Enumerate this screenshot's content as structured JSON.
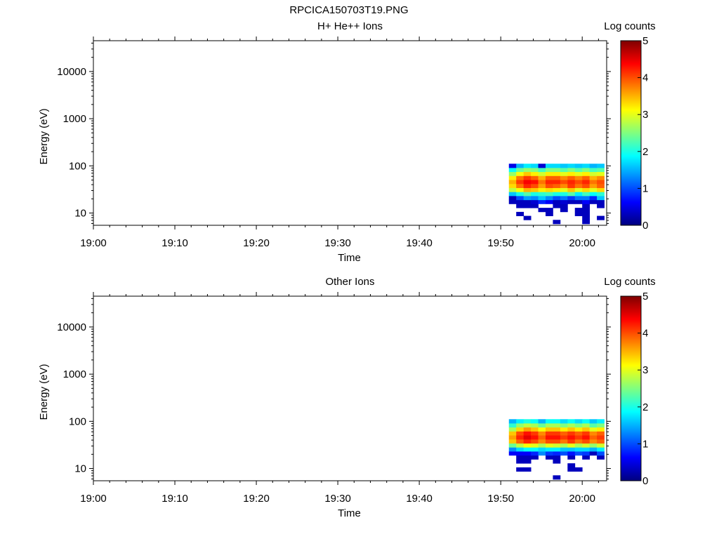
{
  "figure_title": "RPCICA150703T19.PNG",
  "chart_data": [
    {
      "type": "heatmap",
      "title": "H+ He++ Ions",
      "xlabel": "Time",
      "ylabel": "Energy (eV)",
      "x_ticks": [
        "19:00",
        "19:10",
        "19:20",
        "19:30",
        "19:40",
        "19:50",
        "20:00"
      ],
      "xlim_minutes": [
        0,
        63
      ],
      "y_scale": "log",
      "ylim": [
        5.5,
        45000
      ],
      "y_ticks": [
        10,
        100,
        1000,
        10000
      ],
      "colorbar": {
        "label": "Log counts",
        "range": [
          0,
          5
        ],
        "ticks": [
          0,
          1,
          2,
          3,
          4,
          5
        ],
        "colormap": "jet"
      },
      "time_columns_minutes": [
        51.0,
        51.9,
        52.8,
        53.7,
        54.6,
        55.5,
        56.4,
        57.3,
        58.2,
        59.1,
        60.0,
        60.9,
        61.8
      ],
      "energy_bins_eV": [
        6.5,
        7.9,
        9.6,
        11.7,
        14.2,
        17.3,
        21.0,
        25.6,
        31.1,
        37.8,
        46.0,
        56.0,
        68.1,
        82.8,
        100.7
      ],
      "log_counts": [
        [
          null,
          null,
          null,
          null,
          null,
          null,
          0.3,
          null,
          null,
          null,
          0.3,
          null,
          null
        ],
        [
          null,
          null,
          0.3,
          null,
          null,
          null,
          null,
          null,
          null,
          null,
          0.3,
          null,
          0.3
        ],
        [
          null,
          0.3,
          null,
          null,
          null,
          0.3,
          null,
          null,
          null,
          0.3,
          0.3,
          null,
          null
        ],
        [
          null,
          null,
          null,
          null,
          0.3,
          0.3,
          null,
          0.3,
          null,
          0.3,
          0.3,
          null,
          null
        ],
        [
          null,
          0.3,
          0.3,
          0.3,
          null,
          null,
          0.3,
          0.3,
          null,
          null,
          0.3,
          null,
          0.3
        ],
        [
          0.3,
          0.3,
          0.3,
          0.4,
          0.8,
          0.6,
          0.3,
          0.4,
          0.3,
          0.3,
          0.6,
          0.3,
          0.3
        ],
        [
          0.3,
          1.0,
          1.4,
          1.3,
          1.6,
          1.3,
          1.0,
          1.2,
          0.9,
          1.2,
          1.2,
          0.8,
          1.6
        ],
        [
          1.6,
          2.0,
          2.3,
          2.0,
          2.1,
          2.2,
          2.0,
          2.0,
          2.3,
          1.8,
          2.2,
          1.9,
          2.1
        ],
        [
          2.8,
          3.1,
          3.5,
          3.4,
          3.2,
          3.3,
          3.2,
          3.0,
          3.4,
          3.0,
          3.3,
          3.0,
          3.3
        ],
        [
          3.3,
          3.8,
          4.2,
          4.0,
          3.6,
          4.0,
          3.9,
          3.7,
          4.1,
          3.8,
          4.0,
          3.6,
          3.9
        ],
        [
          3.5,
          4.1,
          4.4,
          4.3,
          3.8,
          4.2,
          4.2,
          4.0,
          4.2,
          4.0,
          4.2,
          3.8,
          4.0
        ],
        [
          3.2,
          3.8,
          4.1,
          3.9,
          3.5,
          3.9,
          3.9,
          3.7,
          3.9,
          3.7,
          3.9,
          3.5,
          3.7
        ],
        [
          2.6,
          3.1,
          3.4,
          3.2,
          2.9,
          3.2,
          3.2,
          3.0,
          3.2,
          3.0,
          3.2,
          2.9,
          3.0
        ],
        [
          1.9,
          2.4,
          2.6,
          2.5,
          2.2,
          2.5,
          2.5,
          2.3,
          2.5,
          2.3,
          2.5,
          2.2,
          2.3
        ],
        [
          0.5,
          1.5,
          1.8,
          1.7,
          0.4,
          1.7,
          1.7,
          1.6,
          1.7,
          1.6,
          1.7,
          1.5,
          1.6
        ]
      ]
    },
    {
      "type": "heatmap",
      "title": "Other Ions",
      "xlabel": "Time",
      "ylabel": "Energy (eV)",
      "x_ticks": [
        "19:00",
        "19:10",
        "19:20",
        "19:30",
        "19:40",
        "19:50",
        "20:00"
      ],
      "xlim_minutes": [
        0,
        63
      ],
      "y_scale": "log",
      "ylim": [
        5.5,
        45000
      ],
      "y_ticks": [
        10,
        100,
        1000,
        10000
      ],
      "colorbar": {
        "label": "Log counts",
        "range": [
          0,
          5
        ],
        "ticks": [
          0,
          1,
          2,
          3,
          4,
          5
        ],
        "colormap": "jet"
      },
      "time_columns_minutes": [
        51.0,
        51.9,
        52.8,
        53.7,
        54.6,
        55.5,
        56.4,
        57.3,
        58.2,
        59.1,
        60.0,
        60.9,
        61.8
      ],
      "energy_bins_eV": [
        6.5,
        7.9,
        9.6,
        11.7,
        14.2,
        17.3,
        21.0,
        25.6,
        31.1,
        37.8,
        46.0,
        56.0,
        68.1,
        82.8,
        100.7
      ],
      "log_counts": [
        [
          null,
          null,
          null,
          null,
          null,
          null,
          0.3,
          null,
          null,
          null,
          null,
          null,
          null
        ],
        [
          null,
          null,
          null,
          null,
          null,
          null,
          null,
          null,
          null,
          null,
          null,
          null,
          null
        ],
        [
          null,
          0.3,
          0.3,
          null,
          null,
          null,
          null,
          null,
          0.3,
          0.3,
          null,
          null,
          null
        ],
        [
          null,
          null,
          null,
          null,
          null,
          null,
          null,
          null,
          0.3,
          null,
          null,
          null,
          null
        ],
        [
          null,
          0.3,
          0.3,
          null,
          null,
          null,
          0.3,
          null,
          null,
          null,
          null,
          null,
          null
        ],
        [
          null,
          0.3,
          0.3,
          0.3,
          null,
          0.3,
          0.3,
          null,
          0.3,
          null,
          0.3,
          null,
          0.3
        ],
        [
          0.6,
          0.6,
          0.6,
          0.8,
          1.3,
          0.9,
          0.8,
          1.0,
          0.7,
          1.0,
          0.9,
          0.3,
          1.0
        ],
        [
          1.3,
          1.7,
          1.9,
          1.9,
          1.7,
          1.8,
          1.8,
          1.6,
          1.6,
          1.7,
          1.7,
          1.5,
          1.8
        ],
        [
          2.4,
          2.8,
          3.1,
          3.0,
          2.7,
          3.0,
          2.9,
          2.7,
          3.0,
          2.7,
          2.9,
          2.6,
          2.9
        ],
        [
          3.4,
          3.9,
          4.2,
          4.0,
          3.7,
          4.0,
          4.0,
          3.8,
          4.1,
          3.8,
          4.0,
          3.7,
          3.9
        ],
        [
          3.6,
          4.2,
          4.5,
          4.3,
          3.9,
          4.3,
          4.3,
          4.1,
          4.3,
          4.1,
          4.3,
          3.9,
          4.1
        ],
        [
          3.4,
          4.0,
          4.3,
          4.1,
          3.7,
          4.1,
          4.1,
          3.9,
          4.1,
          3.9,
          4.1,
          3.7,
          3.9
        ],
        [
          2.7,
          3.3,
          3.6,
          3.4,
          3.1,
          3.4,
          3.4,
          3.2,
          3.4,
          3.2,
          3.4,
          3.0,
          3.2
        ],
        [
          2.1,
          2.6,
          2.8,
          2.7,
          2.4,
          2.7,
          2.7,
          2.5,
          2.7,
          2.5,
          2.7,
          2.3,
          2.5
        ],
        [
          1.5,
          1.8,
          2.0,
          1.9,
          1.5,
          1.9,
          1.9,
          1.7,
          1.9,
          1.7,
          1.9,
          1.6,
          1.8
        ]
      ]
    }
  ]
}
